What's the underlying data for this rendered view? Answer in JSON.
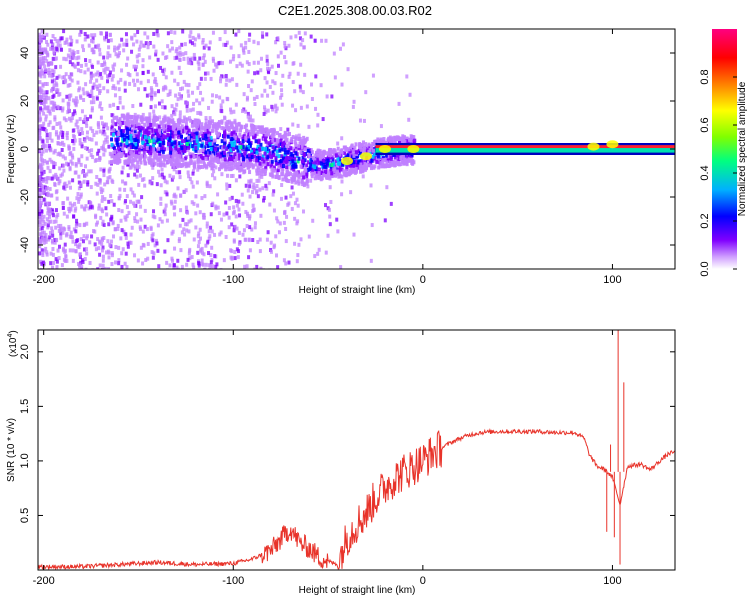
{
  "page_title": "C2E1.2025.308.00.03.R02",
  "chart_data": [
    {
      "type": "heatmap",
      "title": "C2E1.2025.308.00.03.R02",
      "xlabel": "Height of straight line (km)",
      "ylabel": "Frequency (Hz)",
      "xlim": [
        -203,
        133
      ],
      "ylim": [
        -50,
        50
      ],
      "x_ticks": [
        -200,
        -100,
        0,
        100
      ],
      "x_tick_labels": [
        "-200",
        "-100",
        "0",
        "100"
      ],
      "y_ticks": [
        -40,
        -20,
        0,
        20,
        40
      ],
      "y_tick_labels": [
        "-40",
        "-20",
        "0",
        "20",
        "40"
      ],
      "colorbar": {
        "label": "Normalized spectral amplitude",
        "range": [
          0,
          1
        ],
        "ticks": [
          0.0,
          0.2,
          0.4,
          0.6,
          0.8
        ],
        "tick_labels": [
          "0.0",
          "0.2",
          "0.4",
          "0.6",
          "0.8"
        ],
        "colormap": [
          "#ffffff",
          "#c080ff",
          "#7f00ff",
          "#0000ff",
          "#00c0ff",
          "#00ff80",
          "#80ff00",
          "#ffff00",
          "#ff8000",
          "#ff0000",
          "#ff0080"
        ]
      },
      "ridge_center_hz": [
        [
          -160,
          5
        ],
        [
          -140,
          4
        ],
        [
          -120,
          3
        ],
        [
          -100,
          2
        ],
        [
          -85,
          0
        ],
        [
          -75,
          -2
        ],
        [
          -65,
          -4
        ],
        [
          -55,
          -6
        ],
        [
          -45,
          -5
        ],
        [
          -35,
          -3
        ],
        [
          -25,
          -1
        ],
        [
          -15,
          0
        ],
        [
          0,
          1
        ],
        [
          130,
          1
        ]
      ],
      "line_band_hz": [
        -1.5,
        1.5
      ],
      "line_band_start_km": -25,
      "bright_spots": [
        [
          -40,
          -5
        ],
        [
          -30,
          -3
        ],
        [
          -20,
          0
        ],
        [
          -5,
          0
        ],
        [
          90,
          1
        ],
        [
          100,
          2
        ]
      ]
    },
    {
      "type": "line",
      "xlabel": "Height of straight line (km)",
      "ylabel": "SNR (10 * v/v)",
      "y_multiplier": "(x10",
      "y_multiplier_exp": "4",
      "y_multiplier_close": ")",
      "xlim": [
        -203,
        133
      ],
      "ylim": [
        0.0,
        2.2
      ],
      "x_ticks": [
        -200,
        -100,
        0,
        100
      ],
      "x_tick_labels": [
        "-200",
        "-100",
        "0",
        "100"
      ],
      "y_ticks": [
        0.5,
        1.0,
        1.5,
        2.0
      ],
      "y_tick_labels": [
        "0.5",
        "1.0",
        "1.5",
        "2.0"
      ],
      "color": "#e8332a",
      "series": [
        {
          "name": "SNR",
          "points": [
            [
              -203,
              0.03
            ],
            [
              -180,
              0.03
            ],
            [
              -160,
              0.05
            ],
            [
              -140,
              0.07
            ],
            [
              -120,
              0.05
            ],
            [
              -100,
              0.06
            ],
            [
              -90,
              0.1
            ],
            [
              -80,
              0.18
            ],
            [
              -75,
              0.28
            ],
            [
              -70,
              0.38
            ],
            [
              -65,
              0.25
            ],
            [
              -60,
              0.2
            ],
            [
              -55,
              0.12
            ],
            [
              -50,
              0.08
            ],
            [
              -45,
              0.05
            ],
            [
              -40,
              0.3
            ],
            [
              -35,
              0.42
            ],
            [
              -30,
              0.52
            ],
            [
              -25,
              0.66
            ],
            [
              -20,
              0.76
            ],
            [
              -15,
              0.84
            ],
            [
              -10,
              0.9
            ],
            [
              -5,
              0.95
            ],
            [
              0,
              1.0
            ],
            [
              5,
              1.07
            ],
            [
              10,
              1.12
            ],
            [
              15,
              1.17
            ],
            [
              20,
              1.21
            ],
            [
              25,
              1.24
            ],
            [
              30,
              1.26
            ],
            [
              40,
              1.27
            ],
            [
              50,
              1.27
            ],
            [
              60,
              1.27
            ],
            [
              70,
              1.26
            ],
            [
              80,
              1.26
            ],
            [
              85,
              1.21
            ],
            [
              88,
              1.05
            ],
            [
              92,
              0.95
            ],
            [
              96,
              0.92
            ],
            [
              100,
              0.85
            ],
            [
              104,
              0.6
            ],
            [
              108,
              0.95
            ],
            [
              115,
              0.97
            ],
            [
              120,
              0.92
            ],
            [
              125,
              1.0
            ],
            [
              130,
              1.07
            ],
            [
              133,
              1.08
            ]
          ]
        }
      ],
      "spikes": [
        [
          103,
          2.2
        ],
        [
          104,
          0.05
        ],
        [
          106,
          1.72
        ],
        [
          101,
          0.3
        ],
        [
          99,
          1.15
        ],
        [
          97,
          0.35
        ]
      ]
    }
  ]
}
